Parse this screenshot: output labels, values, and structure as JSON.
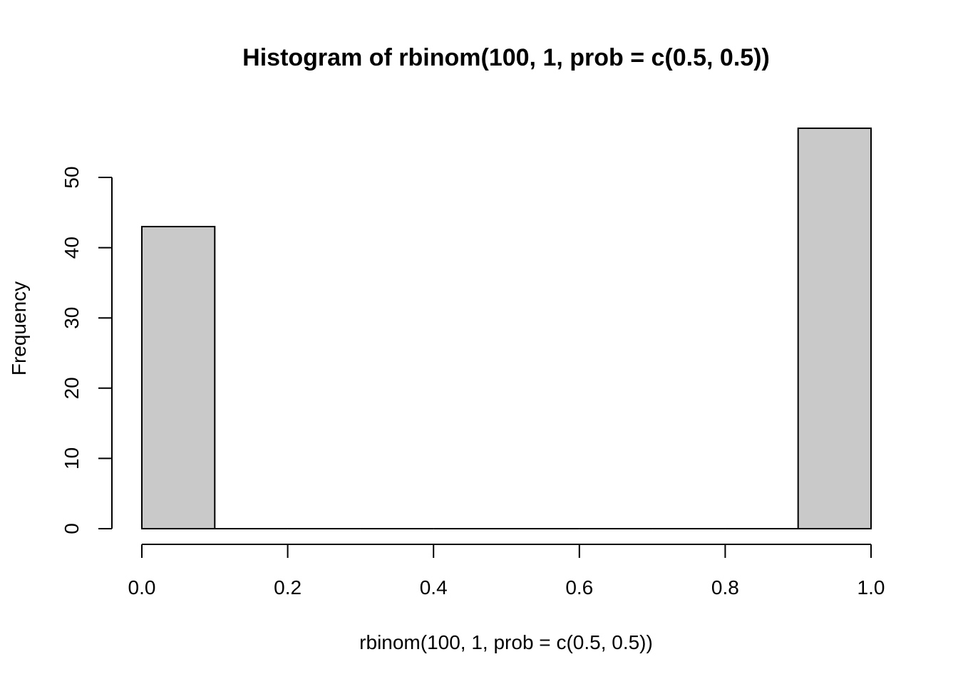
{
  "chart_data": {
    "type": "bar",
    "title": "Histogram of rbinom(100, 1, prob = c(0.5, 0.5))",
    "xlabel": "rbinom(100, 1, prob = c(0.5, 0.5))",
    "ylabel": "Frequency",
    "bins": [
      {
        "from": 0.0,
        "to": 0.1,
        "count": 43
      },
      {
        "from": 0.1,
        "to": 0.2,
        "count": 0
      },
      {
        "from": 0.2,
        "to": 0.3,
        "count": 0
      },
      {
        "from": 0.3,
        "to": 0.4,
        "count": 0
      },
      {
        "from": 0.4,
        "to": 0.5,
        "count": 0
      },
      {
        "from": 0.5,
        "to": 0.6,
        "count": 0
      },
      {
        "from": 0.6,
        "to": 0.7,
        "count": 0
      },
      {
        "from": 0.7,
        "to": 0.8,
        "count": 0
      },
      {
        "from": 0.8,
        "to": 0.9,
        "count": 0
      },
      {
        "from": 0.9,
        "to": 1.0,
        "count": 57
      }
    ],
    "xlim": [
      0,
      1
    ],
    "ylim": [
      0,
      57
    ],
    "xticks": [
      "0.0",
      "0.2",
      "0.4",
      "0.6",
      "0.8",
      "1.0"
    ],
    "yticks": [
      "0",
      "10",
      "20",
      "30",
      "40",
      "50"
    ],
    "bar_color": "#c9c9c9",
    "grid": false
  }
}
